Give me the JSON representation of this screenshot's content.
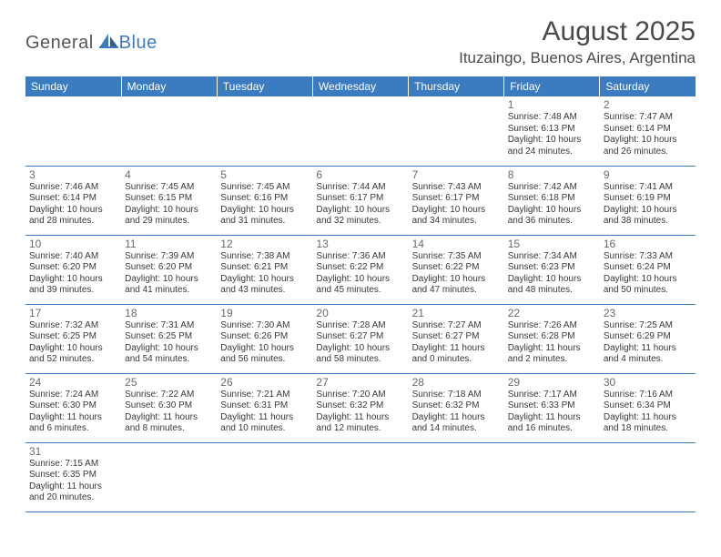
{
  "logo": {
    "word1": "General",
    "word2": "Blue"
  },
  "title": "August 2025",
  "location": "Ituzaingo, Buenos Aires, Argentina",
  "colors": {
    "header_bg": "#3b7bbf",
    "header_text": "#ffffff",
    "row_divider": "#3b7bbf",
    "cell_divider": "#cfcfcf",
    "body_text": "#383838",
    "title_text": "#4a4a4a",
    "logo_gray": "#565656",
    "logo_blue": "#3b7bbf",
    "background": "#ffffff"
  },
  "layout": {
    "columns": 7,
    "rows": 6,
    "col_width_pct": 14.285
  },
  "typography": {
    "title_pt": 30,
    "location_pt": 17,
    "weekday_pt": 12,
    "daynum_pt": 12,
    "cell_pt": 10,
    "logo_pt": 20
  },
  "weekdays": [
    "Sunday",
    "Monday",
    "Tuesday",
    "Wednesday",
    "Thursday",
    "Friday",
    "Saturday"
  ],
  "weeks": [
    [
      null,
      null,
      null,
      null,
      null,
      {
        "n": "1",
        "sr": "Sunrise: 7:48 AM",
        "ss": "Sunset: 6:13 PM",
        "d1": "Daylight: 10 hours",
        "d2": "and 24 minutes."
      },
      {
        "n": "2",
        "sr": "Sunrise: 7:47 AM",
        "ss": "Sunset: 6:14 PM",
        "d1": "Daylight: 10 hours",
        "d2": "and 26 minutes."
      }
    ],
    [
      {
        "n": "3",
        "sr": "Sunrise: 7:46 AM",
        "ss": "Sunset: 6:14 PM",
        "d1": "Daylight: 10 hours",
        "d2": "and 28 minutes."
      },
      {
        "n": "4",
        "sr": "Sunrise: 7:45 AM",
        "ss": "Sunset: 6:15 PM",
        "d1": "Daylight: 10 hours",
        "d2": "and 29 minutes."
      },
      {
        "n": "5",
        "sr": "Sunrise: 7:45 AM",
        "ss": "Sunset: 6:16 PM",
        "d1": "Daylight: 10 hours",
        "d2": "and 31 minutes."
      },
      {
        "n": "6",
        "sr": "Sunrise: 7:44 AM",
        "ss": "Sunset: 6:17 PM",
        "d1": "Daylight: 10 hours",
        "d2": "and 32 minutes."
      },
      {
        "n": "7",
        "sr": "Sunrise: 7:43 AM",
        "ss": "Sunset: 6:17 PM",
        "d1": "Daylight: 10 hours",
        "d2": "and 34 minutes."
      },
      {
        "n": "8",
        "sr": "Sunrise: 7:42 AM",
        "ss": "Sunset: 6:18 PM",
        "d1": "Daylight: 10 hours",
        "d2": "and 36 minutes."
      },
      {
        "n": "9",
        "sr": "Sunrise: 7:41 AM",
        "ss": "Sunset: 6:19 PM",
        "d1": "Daylight: 10 hours",
        "d2": "and 38 minutes."
      }
    ],
    [
      {
        "n": "10",
        "sr": "Sunrise: 7:40 AM",
        "ss": "Sunset: 6:20 PM",
        "d1": "Daylight: 10 hours",
        "d2": "and 39 minutes."
      },
      {
        "n": "11",
        "sr": "Sunrise: 7:39 AM",
        "ss": "Sunset: 6:20 PM",
        "d1": "Daylight: 10 hours",
        "d2": "and 41 minutes."
      },
      {
        "n": "12",
        "sr": "Sunrise: 7:38 AM",
        "ss": "Sunset: 6:21 PM",
        "d1": "Daylight: 10 hours",
        "d2": "and 43 minutes."
      },
      {
        "n": "13",
        "sr": "Sunrise: 7:36 AM",
        "ss": "Sunset: 6:22 PM",
        "d1": "Daylight: 10 hours",
        "d2": "and 45 minutes."
      },
      {
        "n": "14",
        "sr": "Sunrise: 7:35 AM",
        "ss": "Sunset: 6:22 PM",
        "d1": "Daylight: 10 hours",
        "d2": "and 47 minutes."
      },
      {
        "n": "15",
        "sr": "Sunrise: 7:34 AM",
        "ss": "Sunset: 6:23 PM",
        "d1": "Daylight: 10 hours",
        "d2": "and 48 minutes."
      },
      {
        "n": "16",
        "sr": "Sunrise: 7:33 AM",
        "ss": "Sunset: 6:24 PM",
        "d1": "Daylight: 10 hours",
        "d2": "and 50 minutes."
      }
    ],
    [
      {
        "n": "17",
        "sr": "Sunrise: 7:32 AM",
        "ss": "Sunset: 6:25 PM",
        "d1": "Daylight: 10 hours",
        "d2": "and 52 minutes."
      },
      {
        "n": "18",
        "sr": "Sunrise: 7:31 AM",
        "ss": "Sunset: 6:25 PM",
        "d1": "Daylight: 10 hours",
        "d2": "and 54 minutes."
      },
      {
        "n": "19",
        "sr": "Sunrise: 7:30 AM",
        "ss": "Sunset: 6:26 PM",
        "d1": "Daylight: 10 hours",
        "d2": "and 56 minutes."
      },
      {
        "n": "20",
        "sr": "Sunrise: 7:28 AM",
        "ss": "Sunset: 6:27 PM",
        "d1": "Daylight: 10 hours",
        "d2": "and 58 minutes."
      },
      {
        "n": "21",
        "sr": "Sunrise: 7:27 AM",
        "ss": "Sunset: 6:27 PM",
        "d1": "Daylight: 11 hours",
        "d2": "and 0 minutes."
      },
      {
        "n": "22",
        "sr": "Sunrise: 7:26 AM",
        "ss": "Sunset: 6:28 PM",
        "d1": "Daylight: 11 hours",
        "d2": "and 2 minutes."
      },
      {
        "n": "23",
        "sr": "Sunrise: 7:25 AM",
        "ss": "Sunset: 6:29 PM",
        "d1": "Daylight: 11 hours",
        "d2": "and 4 minutes."
      }
    ],
    [
      {
        "n": "24",
        "sr": "Sunrise: 7:24 AM",
        "ss": "Sunset: 6:30 PM",
        "d1": "Daylight: 11 hours",
        "d2": "and 6 minutes."
      },
      {
        "n": "25",
        "sr": "Sunrise: 7:22 AM",
        "ss": "Sunset: 6:30 PM",
        "d1": "Daylight: 11 hours",
        "d2": "and 8 minutes."
      },
      {
        "n": "26",
        "sr": "Sunrise: 7:21 AM",
        "ss": "Sunset: 6:31 PM",
        "d1": "Daylight: 11 hours",
        "d2": "and 10 minutes."
      },
      {
        "n": "27",
        "sr": "Sunrise: 7:20 AM",
        "ss": "Sunset: 6:32 PM",
        "d1": "Daylight: 11 hours",
        "d2": "and 12 minutes."
      },
      {
        "n": "28",
        "sr": "Sunrise: 7:18 AM",
        "ss": "Sunset: 6:32 PM",
        "d1": "Daylight: 11 hours",
        "d2": "and 14 minutes."
      },
      {
        "n": "29",
        "sr": "Sunrise: 7:17 AM",
        "ss": "Sunset: 6:33 PM",
        "d1": "Daylight: 11 hours",
        "d2": "and 16 minutes."
      },
      {
        "n": "30",
        "sr": "Sunrise: 7:16 AM",
        "ss": "Sunset: 6:34 PM",
        "d1": "Daylight: 11 hours",
        "d2": "and 18 minutes."
      }
    ],
    [
      {
        "n": "31",
        "sr": "Sunrise: 7:15 AM",
        "ss": "Sunset: 6:35 PM",
        "d1": "Daylight: 11 hours",
        "d2": "and 20 minutes."
      },
      null,
      null,
      null,
      null,
      null,
      null
    ]
  ]
}
